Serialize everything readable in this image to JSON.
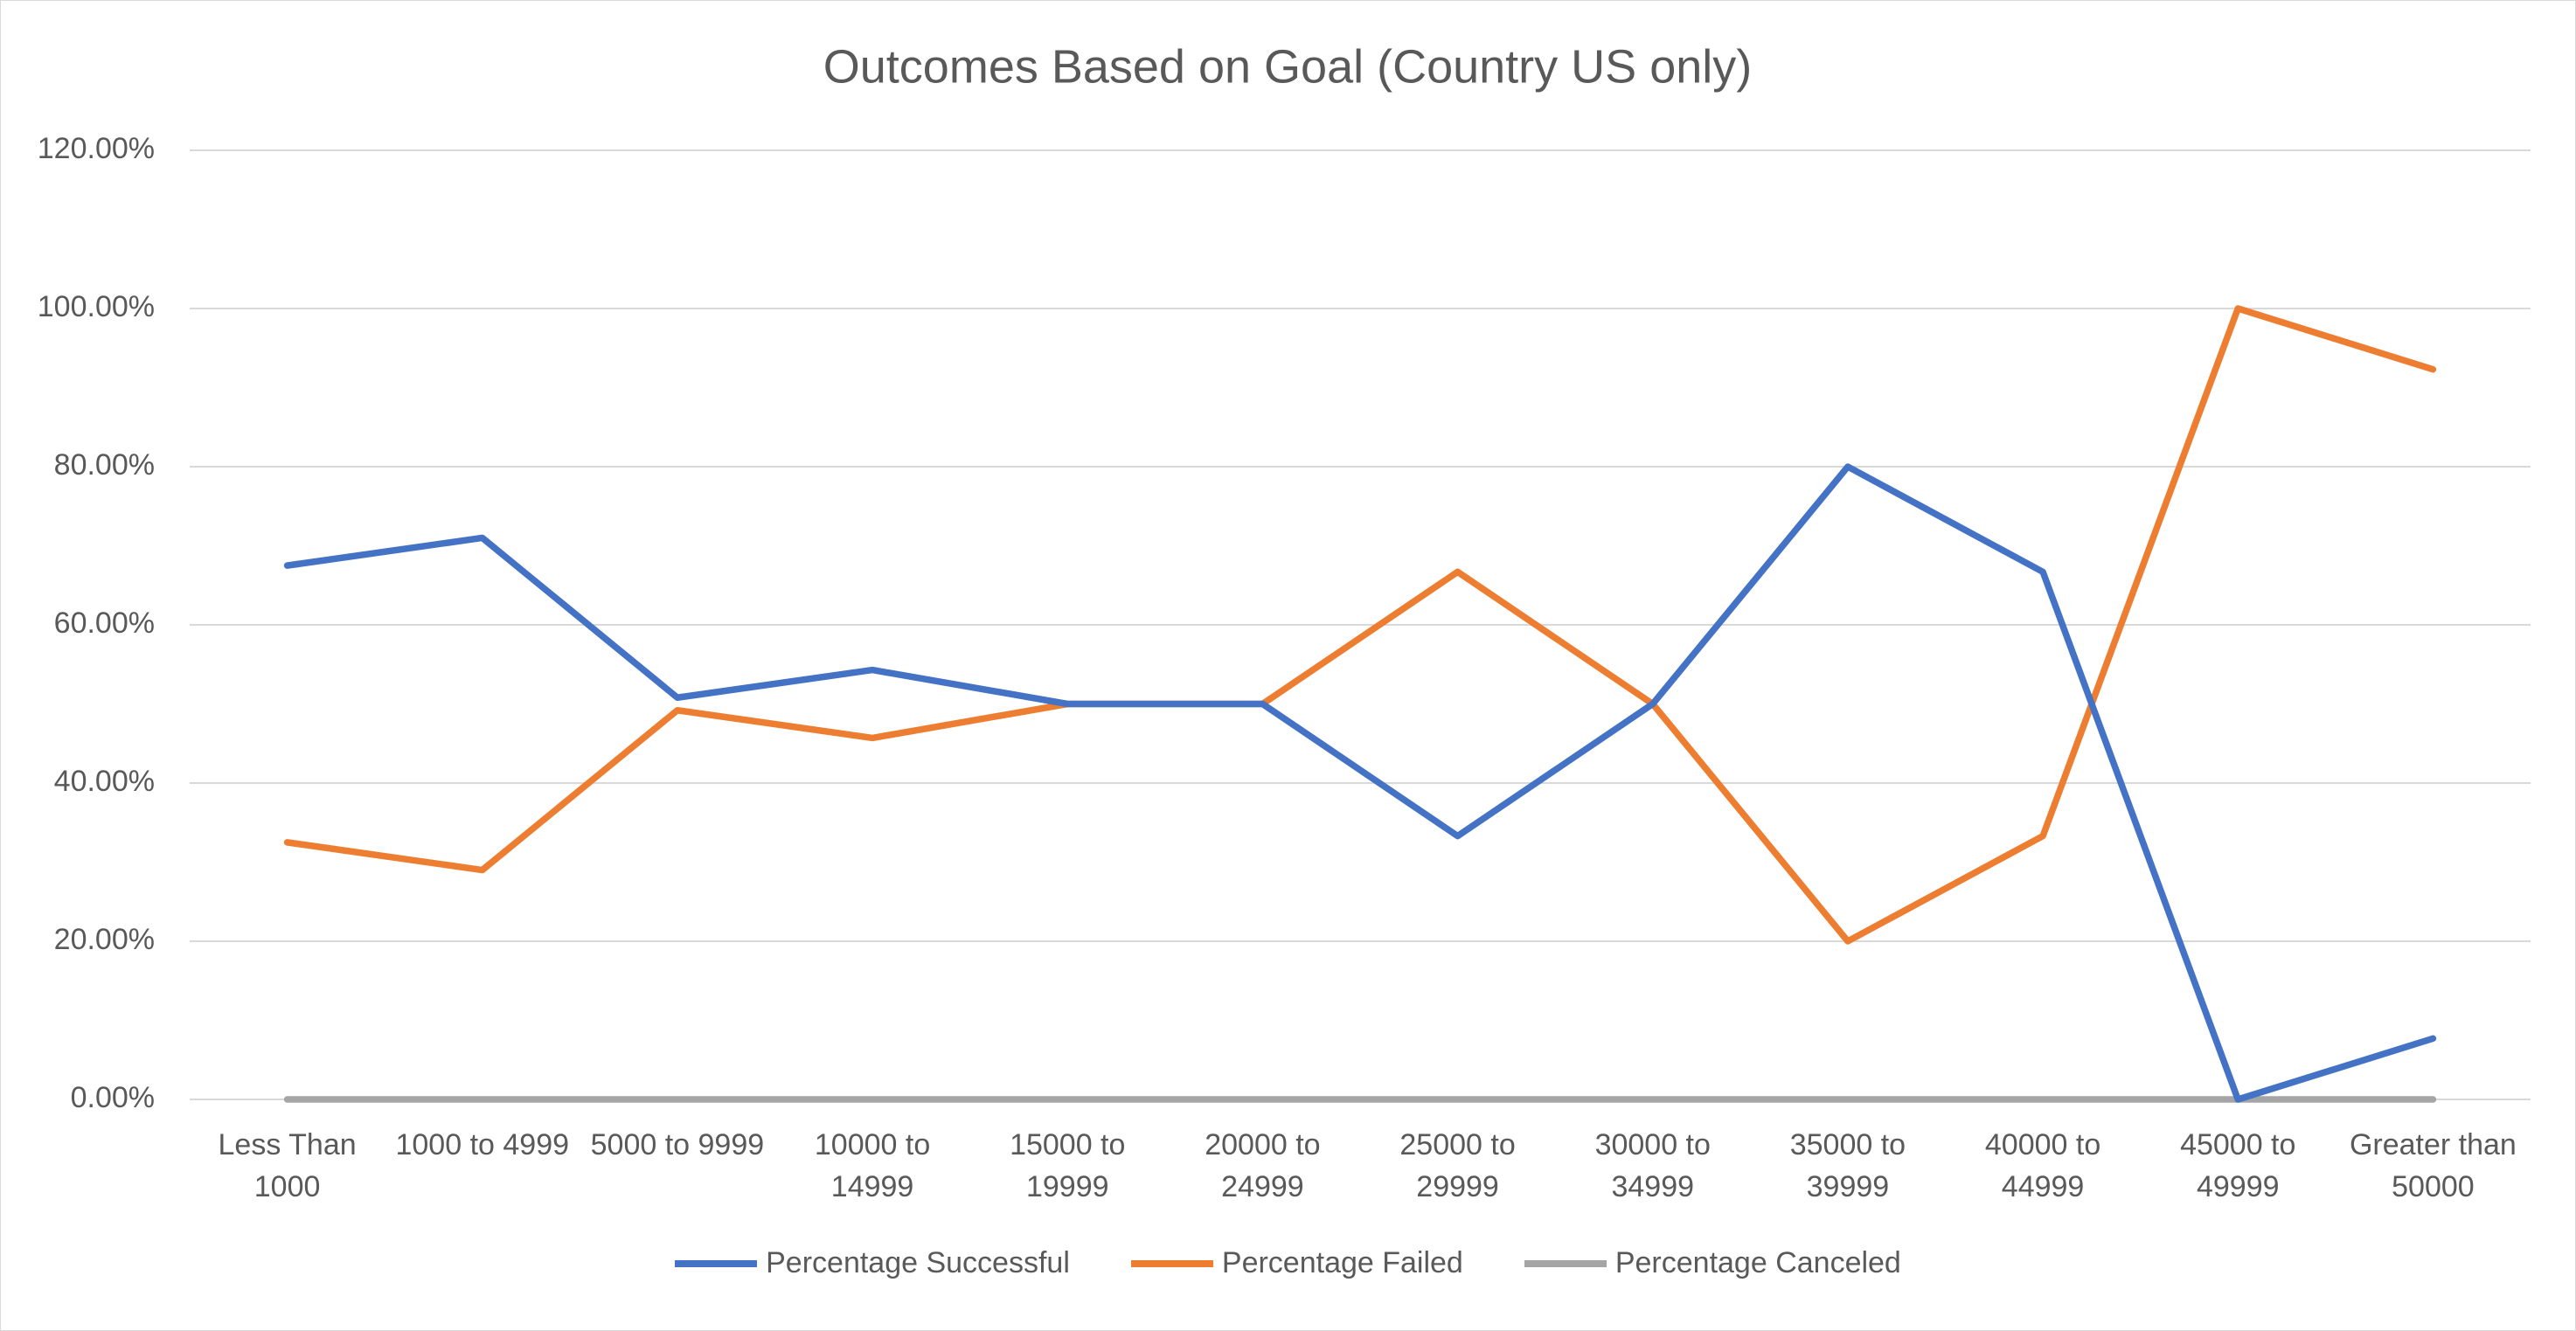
{
  "chart_data": {
    "type": "line",
    "title": "Outcomes Based on Goal (Country US only)",
    "categories": [
      "Less Than 1000",
      "1000 to 4999",
      "5000 to 9999",
      "10000 to 14999",
      "15000 to 19999",
      "20000 to 24999",
      "25000 to 29999",
      "30000 to 34999",
      "35000 to 39999",
      "40000 to 44999",
      "45000 to 49999",
      "Greater than 50000"
    ],
    "series": [
      {
        "name": "Percentage Successful",
        "color": "#4472c4",
        "values": [
          67.5,
          71,
          50.8,
          54.3,
          50,
          50,
          33.3,
          50,
          80,
          66.7,
          0,
          7.7
        ]
      },
      {
        "name": "Percentage Failed",
        "color": "#ed7d31",
        "values": [
          32.5,
          29,
          49.2,
          45.7,
          50,
          50,
          66.7,
          50,
          20,
          33.3,
          100,
          92.3
        ]
      },
      {
        "name": "Percentage Canceled",
        "color": "#a5a5a5",
        "values": [
          0,
          0,
          0,
          0,
          0,
          0,
          0,
          0,
          0,
          0,
          0,
          0
        ]
      }
    ],
    "ylim": [
      0,
      120
    ],
    "yticks": [
      {
        "value": 0,
        "label": "0.00%"
      },
      {
        "value": 20,
        "label": "20.00%"
      },
      {
        "value": 40,
        "label": "40.00%"
      },
      {
        "value": 60,
        "label": "60.00%"
      },
      {
        "value": 80,
        "label": "80.00%"
      },
      {
        "value": 100,
        "label": "100.00%"
      },
      {
        "value": 120,
        "label": "120.00%"
      }
    ],
    "grid": true,
    "legend": "bottom"
  }
}
